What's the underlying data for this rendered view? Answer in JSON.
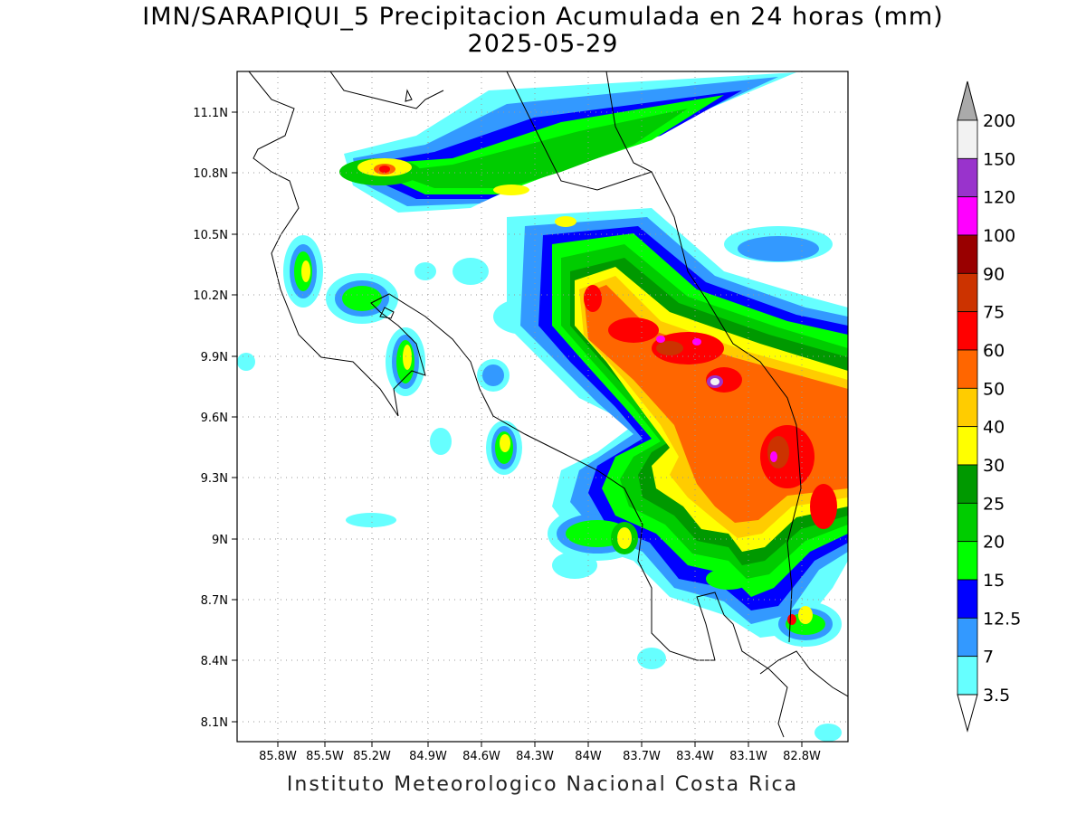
{
  "title": "IMN/SARAPIQUI_5 Precipitacion Acumulada en 24 horas (mm)",
  "date": "2025-05-29",
  "footer": "Instituto Meteorologico Nacional Costa Rica",
  "map": {
    "lon_range": [
      -86.02,
      -82.6
    ],
    "lat_range": [
      8.0,
      11.3
    ],
    "lon_ticks": [
      "85.8W",
      "85.5W",
      "85.2W",
      "84.9W",
      "84.6W",
      "84.3W",
      "84W",
      "83.7W",
      "83.4W",
      "83.1W",
      "82.8W"
    ],
    "lat_ticks": [
      "11.1N",
      "10.8N",
      "10.5N",
      "10.2N",
      "9.9N",
      "9.6N",
      "9.3N",
      "9N",
      "8.7N",
      "8.4N",
      "8.1N"
    ],
    "grid": true
  },
  "colorbar": {
    "labels": [
      "200",
      "150",
      "120",
      "100",
      "90",
      "75",
      "60",
      "50",
      "40",
      "30",
      "25",
      "20",
      "15",
      "12.5",
      "7",
      "3.5"
    ],
    "colors": [
      "#f2f2f2",
      "#9933cc",
      "#ff00ff",
      "#990000",
      "#cc3300",
      "#ff0000",
      "#ff6600",
      "#ffcc00",
      "#ffff00",
      "#009900",
      "#00cc00",
      "#00ff00",
      "#0000ff",
      "#3399ff",
      "#66ffff"
    ],
    "over_color": "#aaaaaa"
  }
}
